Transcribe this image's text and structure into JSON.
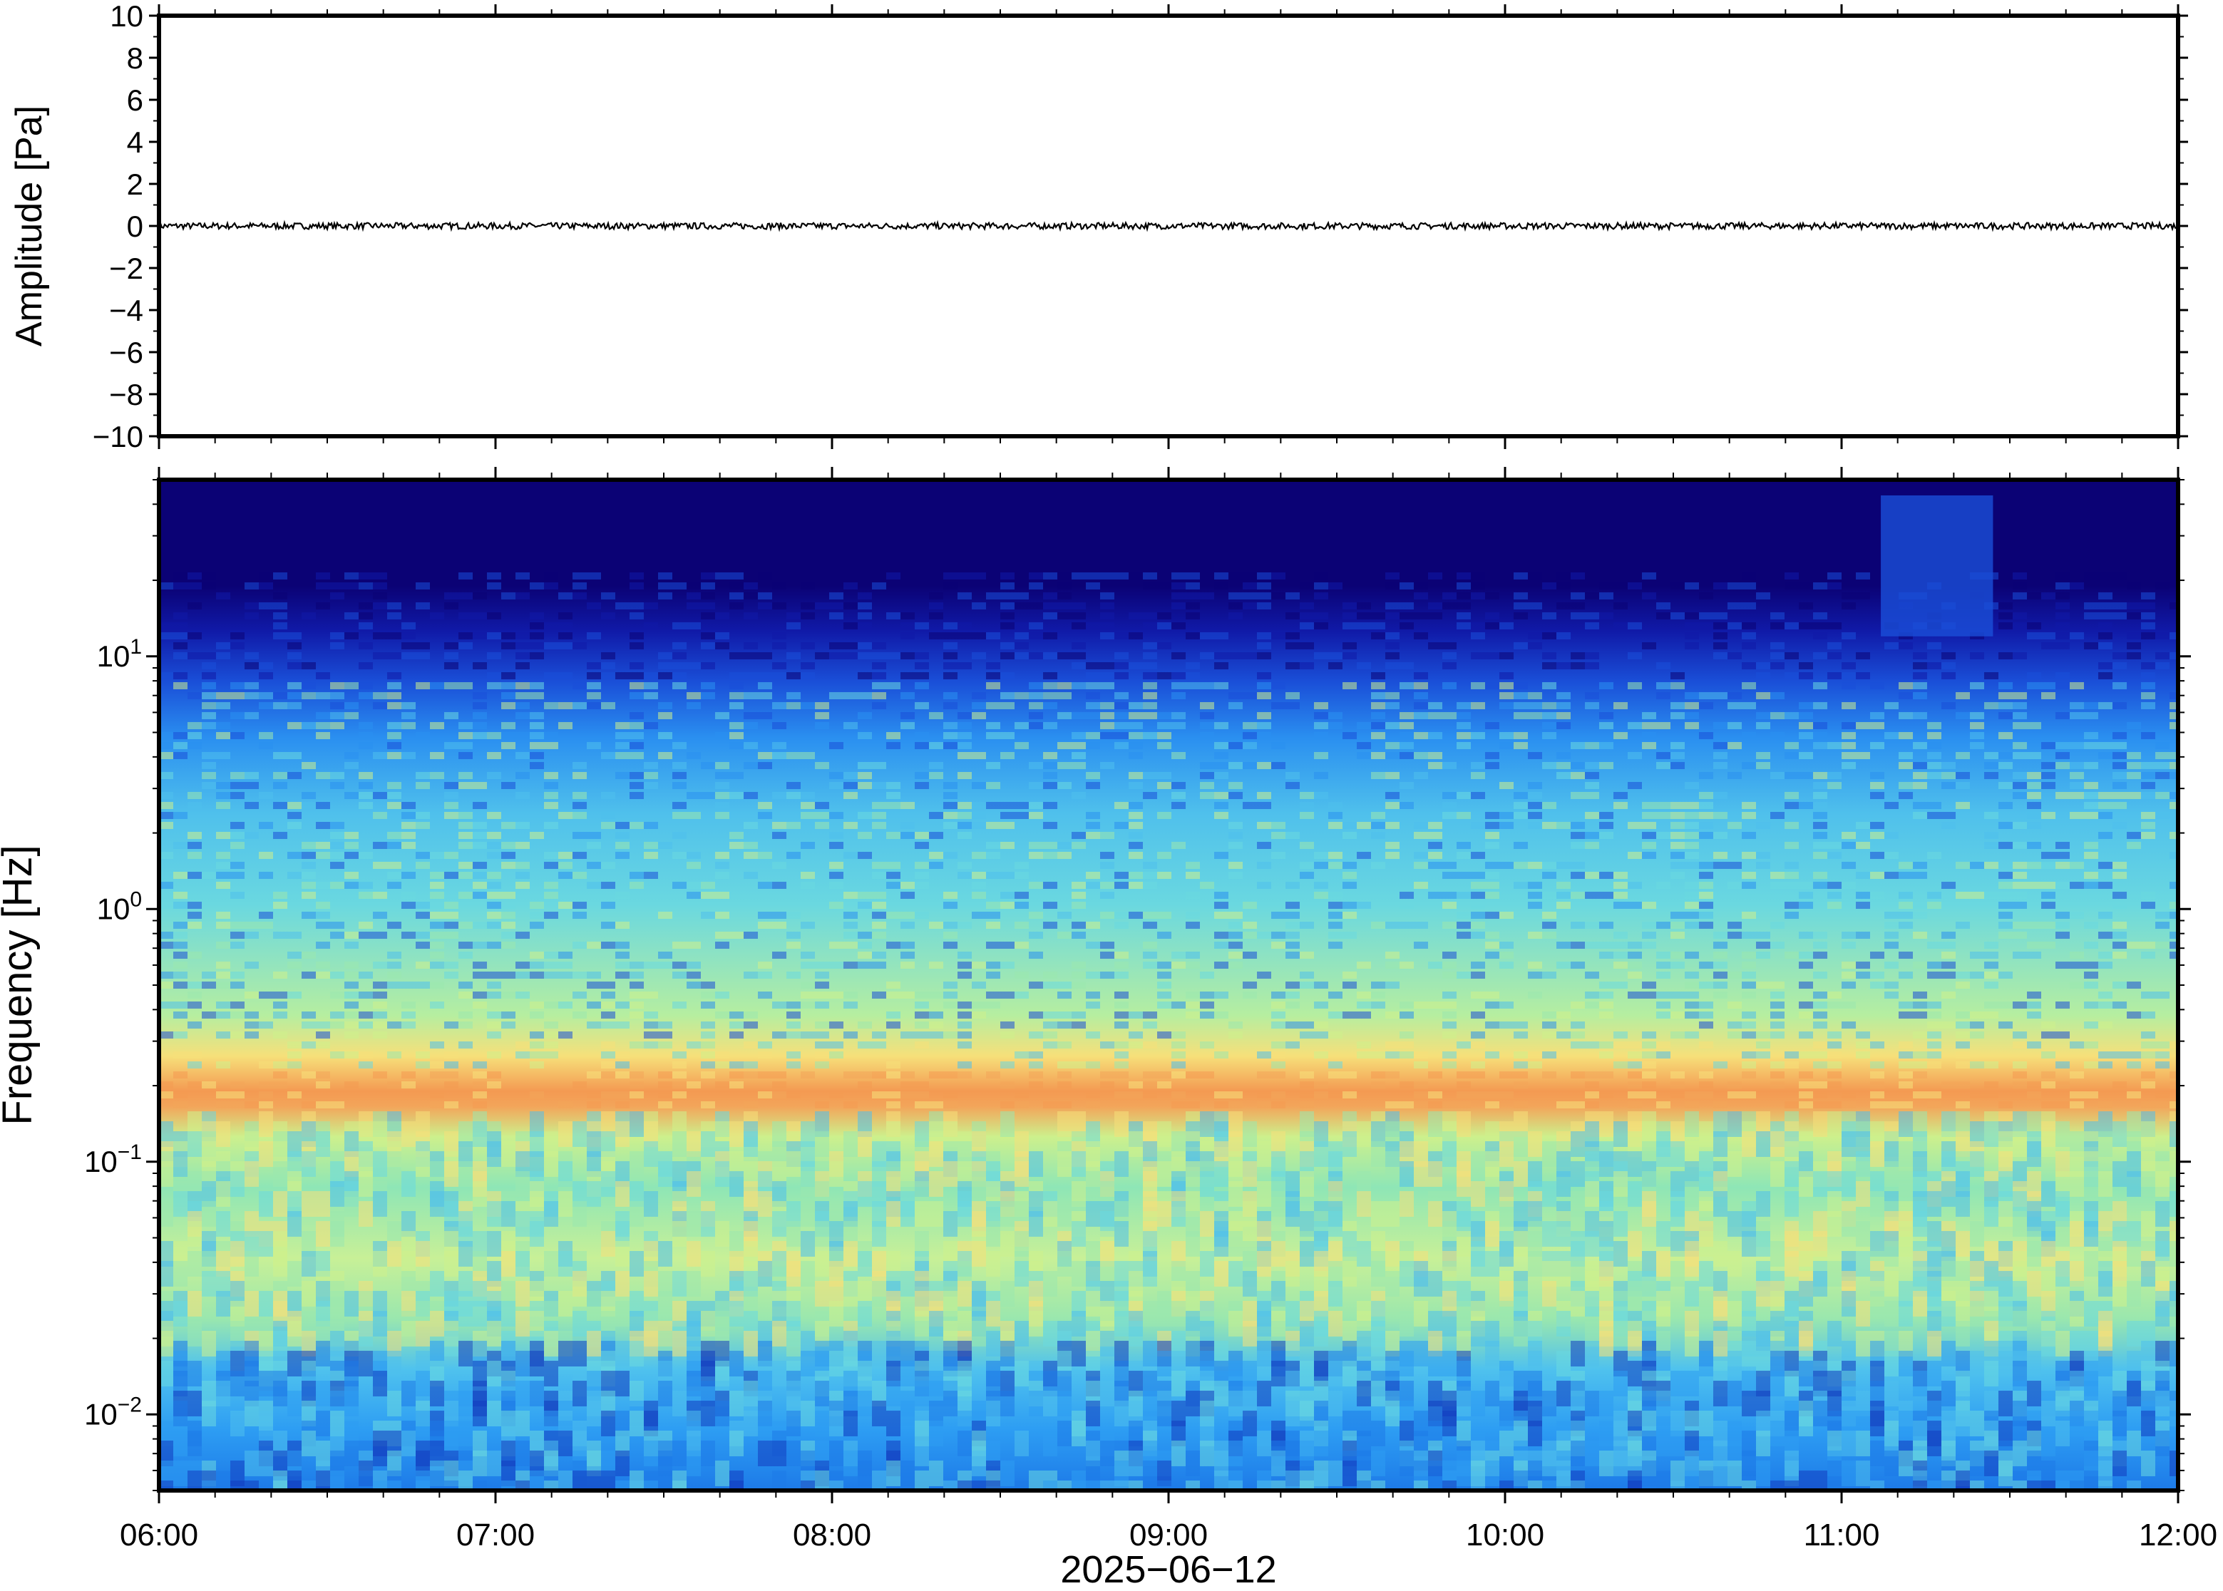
{
  "chart_data": [
    {
      "type": "line",
      "ylabel": "Amplitude [Pa]",
      "xlabel": "",
      "ylim": [
        -10,
        10
      ],
      "yticks": [
        10,
        8,
        6,
        4,
        2,
        0,
        -2,
        -4,
        -6,
        -8,
        -10
      ],
      "ytick_labels": [
        "10",
        "8",
        "6",
        "4",
        "2",
        "0",
        "−2",
        "−4",
        "−6",
        "−8",
        "−10"
      ],
      "xlim": [
        "06:00",
        "12:00"
      ],
      "grid": false,
      "series": [
        {
          "values_description_free": true,
          "x_start": "06:00",
          "x_end": "12:00",
          "mean": 0,
          "peak_abs": 0.15
        }
      ]
    },
    {
      "type": "heatmap",
      "ylabel": "Frequency [Hz]",
      "xlabel": "2025−06−12",
      "y_scale": "log",
      "ylim": [
        0.005,
        50
      ],
      "yticks": [
        0.01,
        0.1,
        1,
        10
      ],
      "ytick_labels": [
        {
          "base": "10",
          "exp": "−2"
        },
        {
          "base": "10",
          "exp": "−1"
        },
        {
          "base": "10",
          "exp": "0"
        },
        {
          "base": "10",
          "exp": "1"
        }
      ],
      "xlim": [
        "06:00",
        "12:00"
      ],
      "xticks": [
        "06:00",
        "07:00",
        "08:00",
        "09:00",
        "10:00",
        "11:00",
        "12:00"
      ],
      "colormap": "jet",
      "colors": {
        "low": "#0b0275",
        "high": "#f08a3c"
      },
      "features": {
        "microseism_peak_hz": 0.18,
        "upper_cutoff_hz": 12,
        "broadband_event": {
          "start": "11:07",
          "end": "11:27"
        }
      }
    }
  ]
}
